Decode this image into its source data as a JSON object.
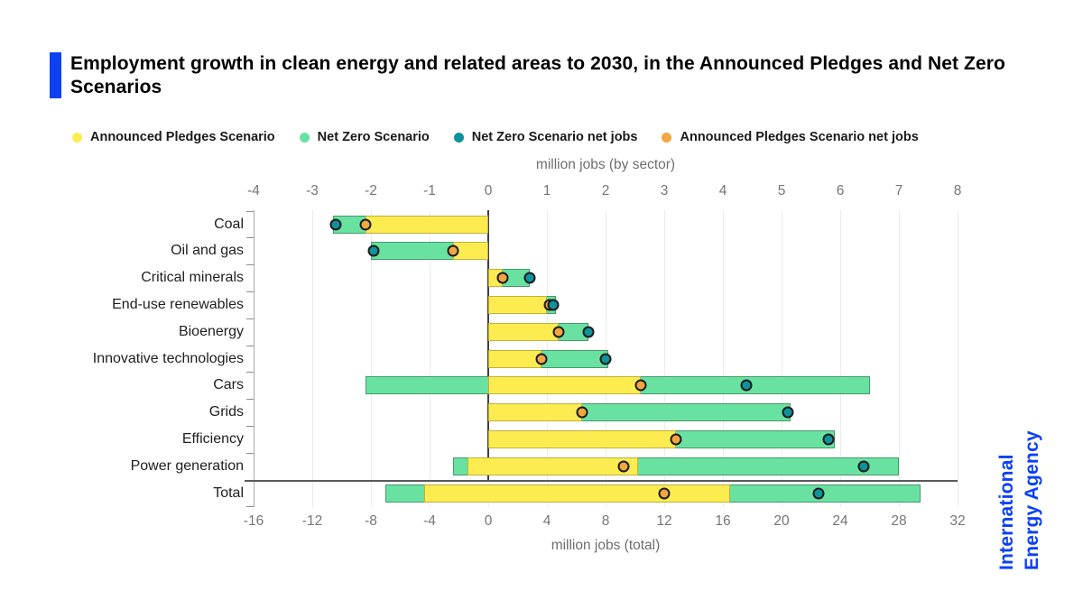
{
  "accent_color": "#0c41f3",
  "header": {
    "title": "Employment growth in clean energy and related areas to 2030, in the Announced Pledges and Net Zero Scenarios"
  },
  "legend": [
    {
      "label": "Announced Pledges Scenario",
      "color": "#fcec50"
    },
    {
      "label": "Net Zero Scenario",
      "color": "#69e2a1"
    },
    {
      "label": "Net Zero Scenario net jobs",
      "color": "#0f929b"
    },
    {
      "label": "Announced Pledges Scenario net jobs",
      "color": "#f4a640"
    }
  ],
  "logo": {
    "line1": "International",
    "line2": "Energy Agency"
  },
  "chart_data": {
    "type": "bar",
    "orientation": "horizontal",
    "grid": true,
    "top_axis": {
      "label": "million jobs (by sector)",
      "min": -4,
      "max": 8,
      "ticks": [
        -4,
        -3,
        -2,
        -1,
        0,
        1,
        2,
        3,
        4,
        5,
        6,
        7,
        8
      ]
    },
    "bottom_axis": {
      "label": "million jobs (total)",
      "min": -16,
      "max": 32,
      "ticks": [
        -16,
        -12,
        -8,
        -4,
        0,
        4,
        8,
        12,
        16,
        20,
        24,
        28,
        32
      ]
    },
    "series_colors": {
      "announced_pledges": "#fcec50",
      "net_zero": "#69e2a1",
      "net_zero_net_jobs": "#0f929b",
      "announced_pledges_net_jobs": "#f4a640"
    },
    "rows": [
      {
        "category": "Coal",
        "axis": "sector",
        "aps_range": [
          -2.1,
          0
        ],
        "nze_range": [
          -2.65,
          0
        ],
        "aps_net": -2.1,
        "nze_net": -2.6
      },
      {
        "category": "Oil and gas",
        "axis": "sector",
        "aps_range": [
          -0.6,
          0
        ],
        "nze_range": [
          -2.0,
          0
        ],
        "aps_net": -0.6,
        "nze_net": -1.95
      },
      {
        "category": "Critical minerals",
        "axis": "sector",
        "aps_range": [
          0,
          0.25
        ],
        "nze_range": [
          0,
          0.7
        ],
        "aps_net": 0.25,
        "nze_net": 0.7
      },
      {
        "category": "End-use renewables",
        "axis": "sector",
        "aps_range": [
          0,
          1.0
        ],
        "nze_range": [
          0,
          1.15
        ],
        "aps_net": 1.05,
        "nze_net": 1.1
      },
      {
        "category": "Bioenergy",
        "axis": "sector",
        "aps_range": [
          0,
          1.2
        ],
        "nze_range": [
          0,
          1.7
        ],
        "aps_net": 1.2,
        "nze_net": 1.7
      },
      {
        "category": "Innovative technologies",
        "axis": "sector",
        "aps_range": [
          0,
          0.9
        ],
        "nze_range": [
          0,
          2.05
        ],
        "aps_net": 0.9,
        "nze_net": 2.0
      },
      {
        "category": "Cars",
        "axis": "sector",
        "aps_range": [
          0,
          2.6
        ],
        "nze_range": [
          -2.1,
          6.5
        ],
        "aps_net": 2.6,
        "nze_net": 4.4
      },
      {
        "category": "Grids",
        "axis": "sector",
        "aps_range": [
          0,
          1.6
        ],
        "nze_range": [
          0,
          5.15
        ],
        "aps_net": 1.6,
        "nze_net": 5.1
      },
      {
        "category": "Efficiency",
        "axis": "sector",
        "aps_range": [
          0,
          3.2
        ],
        "nze_range": [
          0,
          5.9
        ],
        "aps_net": 3.2,
        "nze_net": 5.8
      },
      {
        "category": "Power generation",
        "axis": "sector",
        "aps_range": [
          -0.35,
          2.55
        ],
        "nze_range": [
          -0.6,
          7.0
        ],
        "aps_net": 2.3,
        "nze_net": 6.4
      },
      {
        "category": "Total",
        "axis": "total",
        "aps_range": [
          -4.4,
          16.5
        ],
        "nze_range": [
          -7.0,
          29.5
        ],
        "aps_net": 12.0,
        "nze_net": 22.5
      }
    ]
  }
}
